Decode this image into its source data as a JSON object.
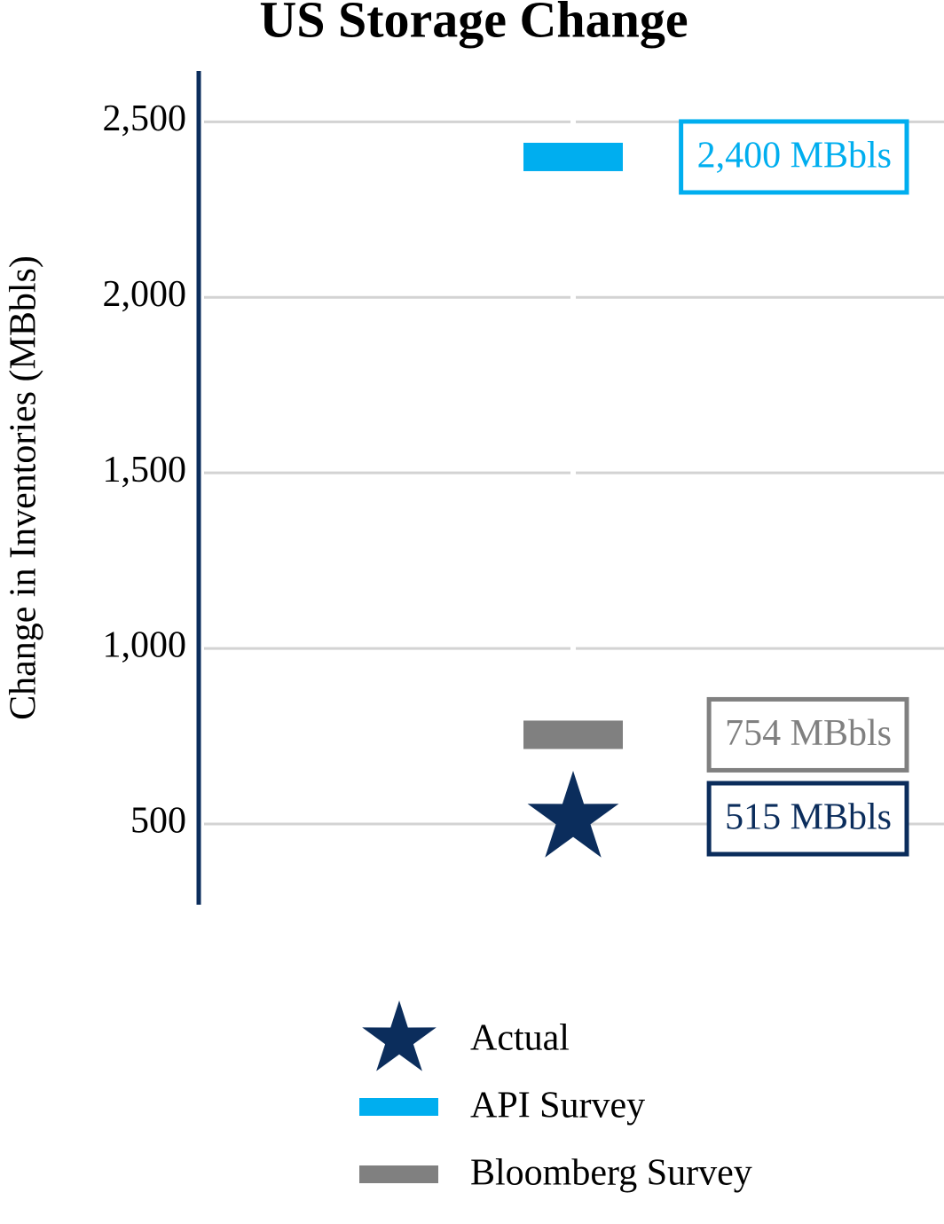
{
  "chart_data": {
    "type": "marker",
    "title": "US Storage Change",
    "y_label": "Change in Inventories (MBbls)",
    "ylim": [
      270,
      2645
    ],
    "yticks": [
      {
        "value": 2500,
        "label": "2,500"
      },
      {
        "value": 2000,
        "label": "2,000"
      },
      {
        "value": 1500,
        "label": "1,500"
      },
      {
        "value": 1000,
        "label": "1,000"
      },
      500
    ],
    "grid": true,
    "legend": "bottom",
    "series": [
      {
        "name": "Actual",
        "color": "#0b2d5c",
        "marker": "star",
        "values": [
          515
        ],
        "value_labels": [
          "515 MBbls"
        ]
      },
      {
        "name": "API Survey",
        "color": "#00aeef",
        "marker": "bar",
        "values": [
          2400
        ],
        "value_labels": [
          "2,400 MBbls"
        ]
      },
      {
        "name": "Bloomberg Survey",
        "color": "#808080",
        "marker": "bar",
        "values": [
          754
        ],
        "value_labels": [
          "754 MBbls"
        ]
      }
    ]
  }
}
